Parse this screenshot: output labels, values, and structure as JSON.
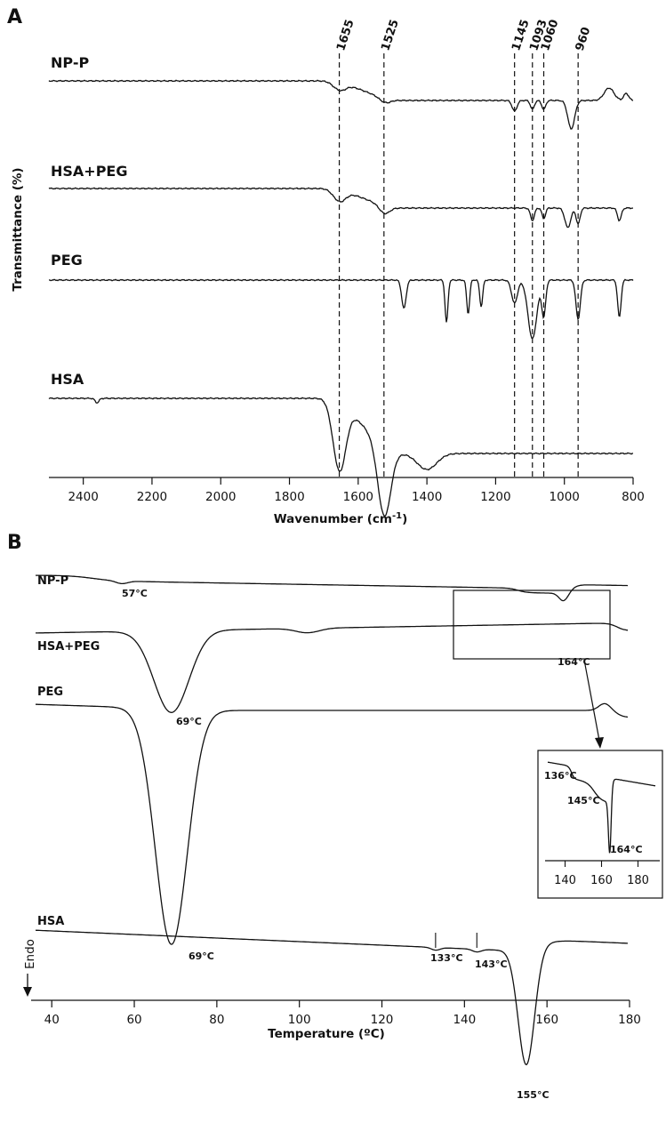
{
  "chart_data": [
    {
      "type": "line",
      "panel": "A",
      "xlabel": "Wavenumber (cm",
      "xlabel_sup": "-1",
      "xlabel_end": ")",
      "ylabel": "Transmittance (%)",
      "xlim": [
        2500,
        800
      ],
      "x_ticks": [
        2400,
        2200,
        2000,
        1800,
        1600,
        1400,
        1200,
        1000,
        800
      ],
      "markers": [
        1655,
        1525,
        1145,
        1093,
        1060,
        960
      ],
      "series": [
        {
          "name": "NP-P",
          "bands": [
            1655,
            1525,
            1145,
            1093,
            1060,
            980
          ]
        },
        {
          "name": "HSA+PEG",
          "bands": [
            1655,
            1525,
            1093,
            1060,
            990,
            960,
            840
          ]
        },
        {
          "name": "PEG",
          "bands": [
            1467,
            1343,
            1280,
            1242,
            1145,
            1093,
            1060,
            960,
            840
          ]
        },
        {
          "name": "HSA",
          "bands": [
            1655,
            1525,
            2360
          ]
        }
      ]
    },
    {
      "type": "line",
      "panel": "B",
      "xlabel": "Temperature (ºC)",
      "ylabel": "Endo",
      "xlim": [
        35,
        180
      ],
      "x_ticks": [
        40,
        60,
        80,
        100,
        120,
        140,
        160,
        180
      ],
      "series": [
        {
          "name": "NP-P",
          "peaks": [
            "57°C",
            "164°C"
          ]
        },
        {
          "name": "HSA+PEG",
          "peaks": [
            "69°C"
          ]
        },
        {
          "name": "PEG",
          "peaks": [
            "69°C"
          ]
        },
        {
          "name": "HSA",
          "peaks": [
            "133°C",
            "143°C",
            "155°C"
          ]
        }
      ],
      "inset": {
        "x_ticks": [
          140,
          160,
          180
        ],
        "peaks": [
          "136°C",
          "145°C",
          "164°C"
        ]
      }
    }
  ]
}
